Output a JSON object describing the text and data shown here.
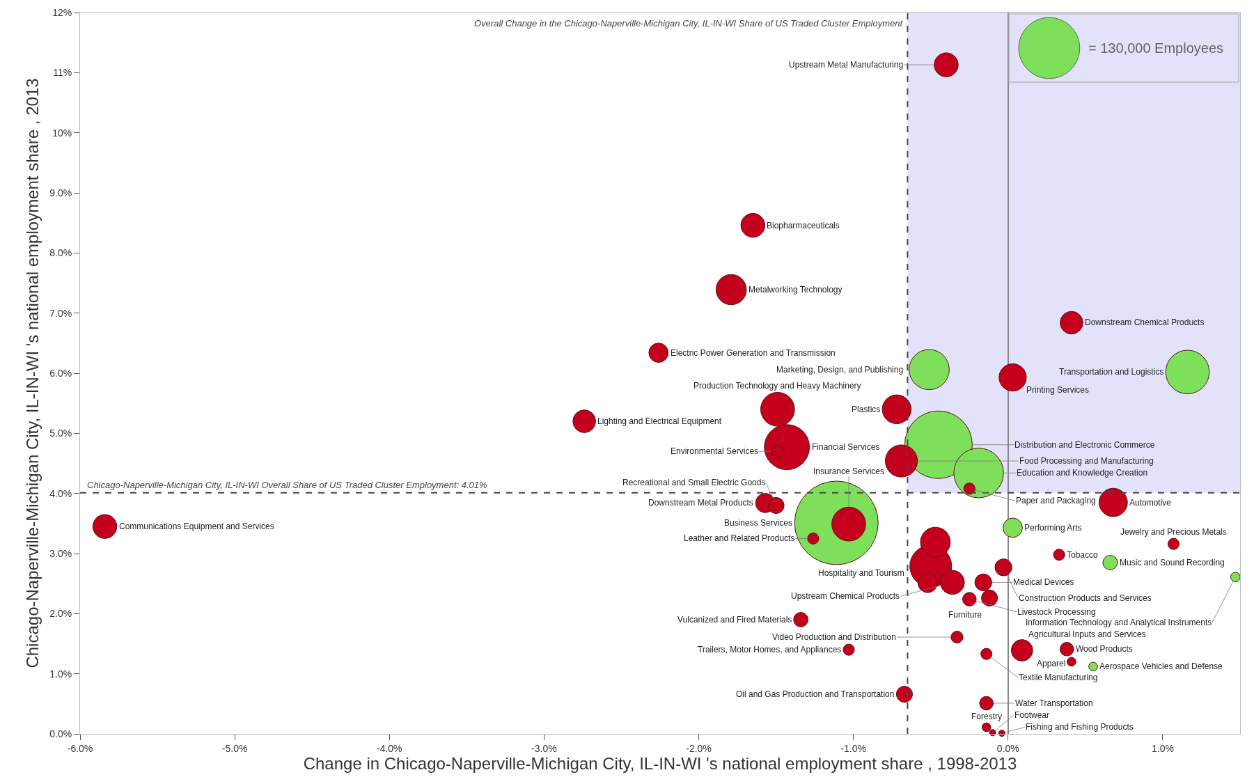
{
  "chart_data": {
    "type": "bubble",
    "xlabel": "Change in Chicago-Naperville-Michigan City, IL-IN-WI 's national employment share , 1998-2013",
    "ylabel": "Chicago-Naperville-Michigan City, IL-IN-WI 's national employment share , 2013",
    "xlim": [
      -6,
      1.5
    ],
    "xticks": [
      {
        "value": -6,
        "label": "-6.0%"
      },
      {
        "value": -5,
        "label": "-5.0%"
      },
      {
        "value": -4,
        "label": "-4.0%"
      },
      {
        "value": -3,
        "label": "-3.0%"
      },
      {
        "value": -2,
        "label": "-2.0%"
      },
      {
        "value": -1,
        "label": "-1.0%"
      },
      {
        "value": 0,
        "label": "0.0%"
      },
      {
        "value": 1,
        "label": "1.0%"
      }
    ],
    "ylim": [
      0,
      12
    ],
    "yticks": [
      {
        "value": 0,
        "label": "0.0%"
      },
      {
        "value": 1,
        "label": "1.0%"
      },
      {
        "value": 2,
        "label": "2.0%"
      },
      {
        "value": 3,
        "label": "3.0%"
      },
      {
        "value": 4,
        "label": "4.0%"
      },
      {
        "value": 5,
        "label": "5.0%"
      },
      {
        "value": 6,
        "label": "6.0%"
      },
      {
        "value": 7,
        "label": "7.0%"
      },
      {
        "value": 8,
        "label": "8.0%"
      },
      {
        "value": 9,
        "label": "9.0%"
      },
      {
        "value": 10,
        "label": "10%"
      },
      {
        "value": 11,
        "label": "11%"
      },
      {
        "value": 12,
        "label": "12%"
      }
    ],
    "size_legend": [
      {
        "value": 130000,
        "label": "= 130,000 Employees"
      }
    ],
    "ref_lines": [
      {
        "axis": "y",
        "value": 4.01,
        "label": "Chicago-Naperville-Michigan City, IL-IN-WI Overall Share of US Traded Cluster Employment: 4.01%",
        "line_style": "dashed",
        "color": "#444455"
      },
      {
        "axis": "x",
        "value": -0.65,
        "label": "Overall Change in the Chicago-Naperville-Michigan City, IL-IN-WI Share of US Traded Cluster Employment",
        "line_style": "dashed",
        "color": "#444455"
      }
    ],
    "bands": [
      {
        "axis": "x",
        "from": -0.65,
        "to": 1.5,
        "color": "#e2e2fa"
      }
    ],
    "series": [
      {
        "color": "#7ee05a",
        "x": [
          -0.51,
          1.16,
          -0.45,
          -0.19,
          -1.11,
          0.03,
          0.66,
          1.47,
          0.55
        ],
        "values": [
          6.06,
          6.02,
          4.81,
          4.34,
          3.51,
          3.43,
          2.85,
          2.61,
          1.12
        ],
        "sizes": [
          56000,
          66000,
          159000,
          86000,
          243000,
          13000,
          7300,
          3200,
          2700
        ],
        "value_labels": [
          "Marketing, Design, and Publishing",
          "Transportation and Logistics",
          "Distribution and Electronic Commerce",
          "Education and Knowledge Creation",
          "Business Services",
          "Performing Arts",
          "Music and Sound Recording",
          "Information Technology and Analytical Instruments",
          "Aerospace Vehicles and Defense"
        ]
      },
      {
        "color": "#c4001c",
        "x": [
          -5.84,
          -1.65,
          -1.79,
          -2.26,
          0.41,
          0.03,
          -1.49,
          -2.74,
          -0.72,
          -1.43,
          -0.69,
          -0.25,
          -1.57,
          -1.5,
          -1.03,
          -1.26,
          -0.4,
          -0.5,
          -0.47,
          -0.52,
          -0.36,
          -0.16,
          -0.03,
          -0.12,
          -0.25,
          0.68,
          1.07,
          0.33,
          -1.34,
          -0.33,
          -1.03,
          -0.14,
          0.09,
          0.38,
          0.41,
          -0.67,
          -0.14,
          -0.14,
          -0.1,
          -0.04,
          -1.49
        ],
        "values": [
          3.45,
          8.46,
          7.39,
          6.34,
          6.84,
          5.93,
          5.4,
          5.2,
          5.4,
          4.77,
          4.54,
          4.08,
          3.84,
          3.8,
          3.49,
          3.25,
          11.13,
          2.79,
          3.19,
          2.51,
          2.52,
          2.52,
          2.77,
          2.26,
          2.24,
          3.85,
          3.16,
          2.98,
          1.9,
          1.61,
          1.4,
          1.33,
          1.39,
          1.41,
          1.2,
          0.66,
          0.51,
          0.11,
          0.02,
          0.01,
          4.7
        ],
        "sizes": [
          20000,
          20000,
          32000,
          13000,
          18000,
          26000,
          40000,
          18000,
          29000,
          71000,
          36000,
          4400,
          13000,
          9000,
          40000,
          4400,
          20000,
          61000,
          31000,
          13000,
          20000,
          10000,
          10000,
          9000,
          6500,
          28000,
          4400,
          4400,
          7300,
          5000,
          4400,
          4400,
          16000,
          6500,
          2700,
          9000,
          6500,
          2700,
          1400,
          1400,
          5800
        ],
        "value_labels": [
          "Communications Equipment and Services",
          "Biopharmaceuticals",
          "Metalworking Technology",
          "Electric Power Generation and Transmission",
          "Downstream Chemical Products",
          "Printing Services",
          "Production Technology and Heavy Machinery",
          "Lighting and Electrical Equipment",
          "Plastics",
          "Financial Services",
          "Food Processing and Manufacturing",
          "Paper and Packaging",
          "Downstream Metal Products",
          "Recreational and Small Electric Goods",
          "Insurance Services",
          "Leather and Related Products",
          "Upstream Metal Manufacturing",
          "Hospitality and Tourism",
          null,
          null,
          "Upstream Chemical Products",
          "Medical Devices",
          "Construction Products and Services",
          "Furniture",
          "Livestock Processing",
          "Automotive",
          "Jewelry and Precious Metals",
          "Tobacco",
          "Vulcanized and Fired Materials",
          "Video Production and Distribution",
          "Trailers, Motor Homes, and Appliances",
          "Textile Manufacturing",
          "Agricultural Inputs and Services",
          "Wood Products",
          "Apparel",
          "Oil and Gas Production and Transportation",
          "Water Transportation",
          "Forestry",
          "Footwear",
          "Fishing and Fishing Products",
          "Environmental Services"
        ]
      }
    ]
  }
}
